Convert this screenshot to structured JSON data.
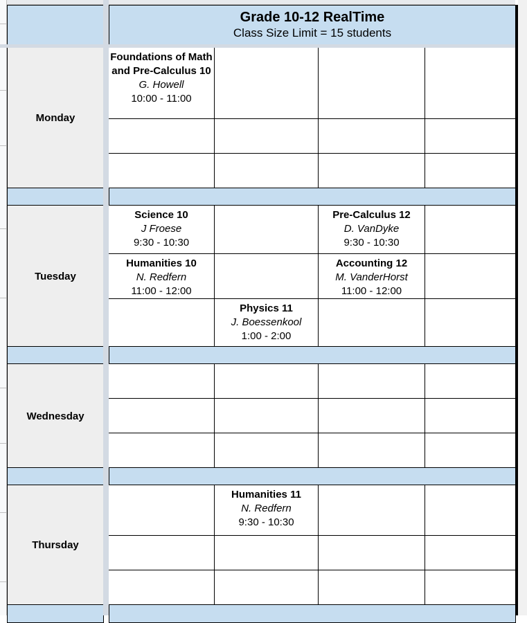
{
  "header": {
    "title": "Grade 10-12 RealTime",
    "subtitle": "Class Size Limit = 15 students"
  },
  "colors": {
    "header_blue": "#c6ddf0",
    "day_gray": "#eeeeee"
  },
  "days": [
    {
      "name": "Monday",
      "rows": [
        [
          {
            "course": "Foundations of Math and Pre-Calculus 10",
            "teacher": "G. Howell",
            "time": "10:00 - 11:00"
          },
          null,
          null,
          null
        ],
        [
          null,
          null,
          null,
          null
        ],
        [
          null,
          null,
          null,
          null
        ]
      ]
    },
    {
      "name": "Tuesday",
      "rows": [
        [
          {
            "course": "Science 10",
            "teacher": "J Froese",
            "time": "9:30 - 10:30"
          },
          null,
          {
            "course": "Pre-Calculus 12",
            "teacher": "D. VanDyke",
            "time": "9:30 - 10:30"
          },
          null
        ],
        [
          {
            "course": "Humanities 10",
            "teacher": "N. Redfern",
            "time": "11:00 - 12:00"
          },
          null,
          {
            "course": "Accounting 12",
            "teacher": "M. VanderHorst",
            "time": "11:00 - 12:00"
          },
          null
        ],
        [
          null,
          {
            "course": "Physics 11",
            "teacher": "J. Boessenkool",
            "time": "1:00 - 2:00"
          },
          null,
          null
        ]
      ]
    },
    {
      "name": "Wednesday",
      "rows": [
        [
          null,
          null,
          null,
          null
        ],
        [
          null,
          null,
          null,
          null
        ],
        [
          null,
          null,
          null,
          null
        ]
      ]
    },
    {
      "name": "Thursday",
      "rows": [
        [
          null,
          {
            "course": "Humanities 11",
            "teacher": "N. Redfern",
            "time": "9:30 - 10:30"
          },
          null,
          null
        ],
        [
          null,
          null,
          null,
          null
        ],
        [
          null,
          null,
          null,
          null
        ]
      ]
    }
  ]
}
